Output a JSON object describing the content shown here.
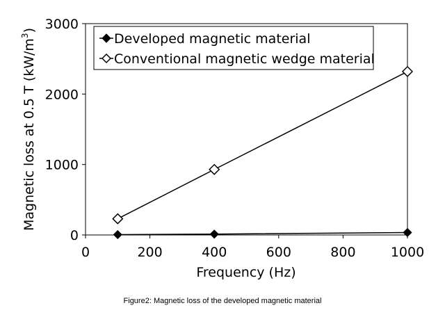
{
  "chart_data": {
    "type": "line",
    "title": "",
    "xlabel": "Frequency (Hz)",
    "ylabel_main": "Magnetic loss at 0.5 T (kW/m",
    "ylabel_sup": "3",
    "ylabel_close": ")",
    "xlim": [
      0,
      1000
    ],
    "ylim": [
      0,
      3000
    ],
    "xticks": [
      0,
      200,
      400,
      600,
      800,
      1000
    ],
    "yticks": [
      0,
      1000,
      2000,
      3000
    ],
    "xtick_labels": [
      "0",
      "200",
      "400",
      "600",
      "800",
      "1000"
    ],
    "ytick_labels": [
      "0",
      "1000",
      "2000",
      "3000"
    ],
    "legend_position": "top-left",
    "series": [
      {
        "name": "Developed magnetic material",
        "marker": "filled-diamond",
        "x": [
          100,
          400,
          1000
        ],
        "y": [
          5,
          12,
          35
        ]
      },
      {
        "name": "Conventional magnetic wedge material",
        "marker": "open-diamond",
        "x": [
          100,
          400,
          1000
        ],
        "y": [
          230,
          930,
          2320
        ]
      }
    ]
  },
  "caption": "Figure2: Magnetic loss of the developed magnetic material"
}
